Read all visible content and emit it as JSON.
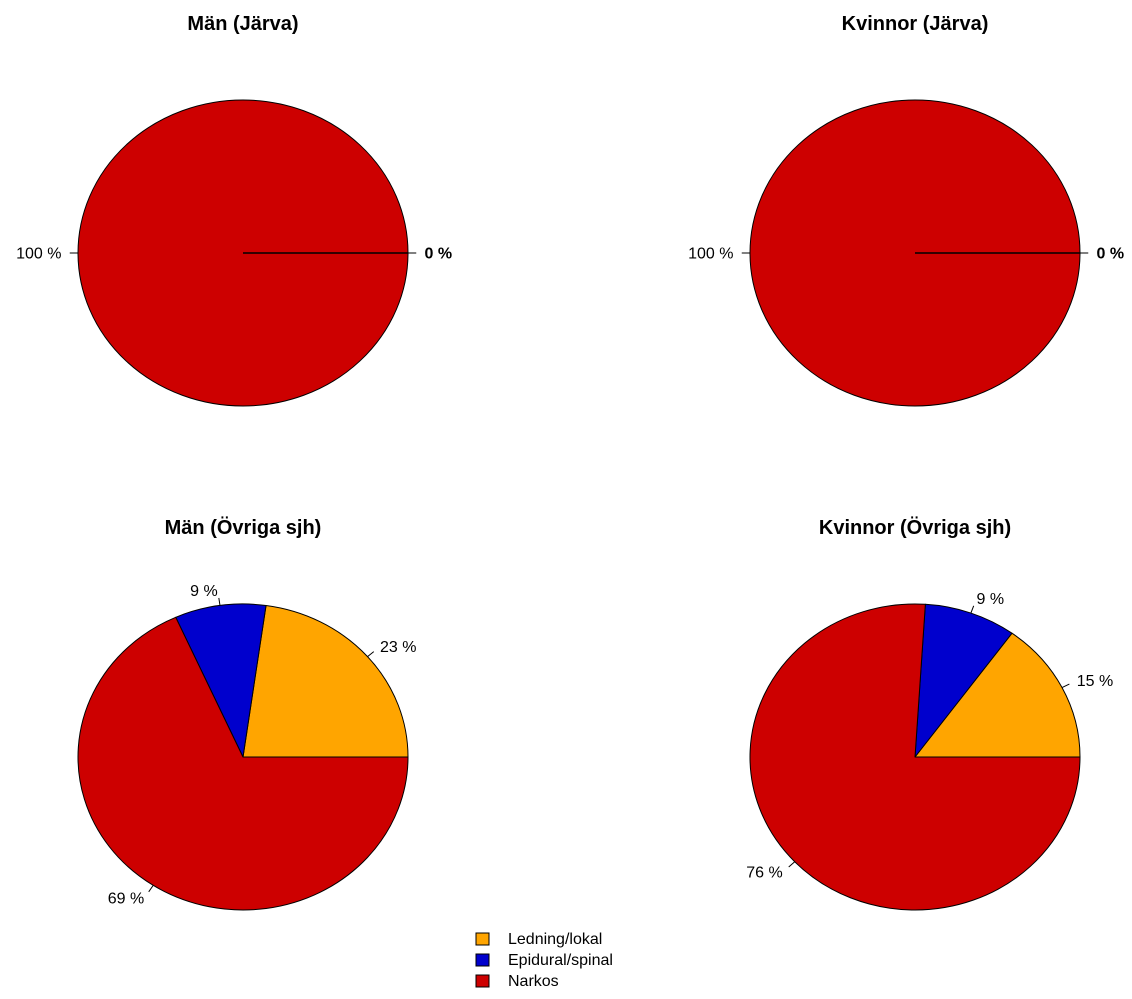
{
  "colors": {
    "Ledning/lokal": "#FFA500",
    "Epidural/spinal": "#0000CD",
    "Narkos": "#CD0000"
  },
  "legend": {
    "placement": "bottom-center",
    "items": [
      "Ledning/lokal",
      "Epidural/spinal",
      "Narkos"
    ]
  },
  "chart_data": [
    {
      "type": "pie",
      "title": "Män (Järva)",
      "categories": [
        "Ledning/lokal",
        "Epidural/spinal",
        "Narkos"
      ],
      "values": [
        0,
        0,
        100
      ],
      "labels": [
        "0 %",
        "",
        "100 %"
      ]
    },
    {
      "type": "pie",
      "title": "Kvinnor (Järva)",
      "categories": [
        "Ledning/lokal",
        "Epidural/spinal",
        "Narkos"
      ],
      "values": [
        0,
        0,
        100
      ],
      "labels": [
        "0 %",
        "",
        "100 %"
      ]
    },
    {
      "type": "pie",
      "title": "Män (Övriga sjh)",
      "categories": [
        "Ledning/lokal",
        "Epidural/spinal",
        "Narkos"
      ],
      "values": [
        23,
        9,
        69
      ],
      "labels": [
        "23 %",
        "9 %",
        "69 %"
      ]
    },
    {
      "type": "pie",
      "title": "Kvinnor (Övriga sjh)",
      "categories": [
        "Ledning/lokal",
        "Epidural/spinal",
        "Narkos"
      ],
      "values": [
        15,
        9,
        76
      ],
      "labels": [
        "15 %",
        "9 %",
        "76 %"
      ]
    }
  ]
}
